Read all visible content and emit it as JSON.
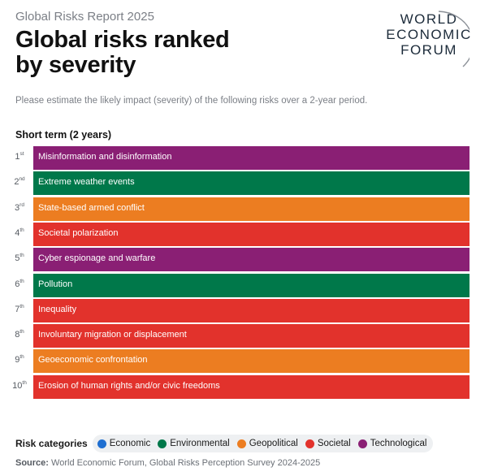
{
  "header": {
    "report": "Global Risks Report 2025",
    "title_line1": "Global risks ranked",
    "title_line2": "by severity",
    "subtitle": "Please estimate the likely impact (severity) of the following risks over a 2-year period."
  },
  "logo": {
    "line1": "WORLD",
    "line2": "ECONOMIC",
    "line3": "FORUM"
  },
  "colors": {
    "Economic": "#1f6fd1",
    "Environmental": "#00784a",
    "Geopolitical": "#ec7d21",
    "Societal": "#e2322c",
    "Technological": "#8a1f74"
  },
  "chart_data": {
    "type": "table",
    "title": "Short term (2 years)",
    "rows": [
      {
        "rank": 1,
        "suffix": "st",
        "label": "Misinformation and disinformation",
        "category": "Technological"
      },
      {
        "rank": 2,
        "suffix": "nd",
        "label": "Extreme weather events",
        "category": "Environmental"
      },
      {
        "rank": 3,
        "suffix": "rd",
        "label": "State-based armed conflict",
        "category": "Geopolitical"
      },
      {
        "rank": 4,
        "suffix": "th",
        "label": "Societal polarization",
        "category": "Societal"
      },
      {
        "rank": 5,
        "suffix": "th",
        "label": "Cyber espionage and warfare",
        "category": "Technological"
      },
      {
        "rank": 6,
        "suffix": "th",
        "label": "Pollution",
        "category": "Environmental"
      },
      {
        "rank": 7,
        "suffix": "th",
        "label": "Inequality",
        "category": "Societal"
      },
      {
        "rank": 8,
        "suffix": "th",
        "label": "Involuntary migration or displacement",
        "category": "Societal"
      },
      {
        "rank": 9,
        "suffix": "th",
        "label": "Geoeconomic confrontation",
        "category": "Geopolitical"
      },
      {
        "rank": 10,
        "suffix": "th",
        "label": "Erosion of human rights and/or civic freedoms",
        "category": "Societal"
      }
    ]
  },
  "legend": {
    "title": "Risk categories",
    "items": [
      "Economic",
      "Environmental",
      "Geopolitical",
      "Societal",
      "Technological"
    ]
  },
  "source": {
    "label": "Source:",
    "text": "World Economic Forum, Global Risks Perception Survey 2024-2025"
  }
}
